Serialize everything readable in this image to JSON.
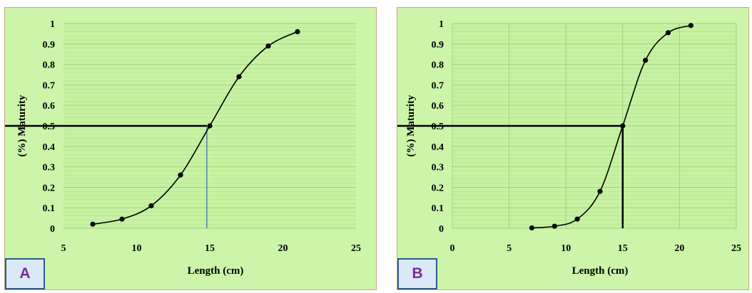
{
  "chart_data": [
    {
      "type": "line",
      "panel_label": "A",
      "xlabel": "Length (cm)",
      "ylabel": "(%) Maturity",
      "xlim": [
        5,
        25
      ],
      "ylim": [
        0,
        1
      ],
      "x_ticks": [
        5,
        10,
        15,
        20,
        25
      ],
      "y_ticks": [
        0,
        0.1,
        0.2,
        0.3,
        0.4,
        0.5,
        0.6,
        0.7,
        0.8,
        0.9,
        1
      ],
      "grid": "horizontal",
      "series": [
        {
          "x": [
            7,
            9,
            11,
            13,
            15,
            17,
            19,
            21
          ],
          "y": [
            0.02,
            0.045,
            0.11,
            0.26,
            0.5,
            0.74,
            0.89,
            0.96
          ]
        }
      ],
      "l50": {
        "x": 14.8,
        "y": 0.5
      }
    },
    {
      "type": "line",
      "panel_label": "B",
      "xlabel": "Length (cm)",
      "ylabel": "(%) Maturity",
      "xlim": [
        0,
        25
      ],
      "ylim": [
        0,
        1
      ],
      "x_ticks": [
        0,
        5,
        10,
        15,
        20,
        25
      ],
      "y_ticks": [
        0,
        0.1,
        0.2,
        0.3,
        0.4,
        0.5,
        0.6,
        0.7,
        0.8,
        0.9,
        1
      ],
      "grid": "both",
      "series": [
        {
          "x": [
            7,
            9,
            11,
            13,
            15,
            17,
            19,
            21
          ],
          "y": [
            0.002,
            0.01,
            0.045,
            0.18,
            0.5,
            0.82,
            0.955,
            0.99
          ]
        }
      ],
      "l50": {
        "x": 15,
        "y": 0.5
      }
    }
  ]
}
